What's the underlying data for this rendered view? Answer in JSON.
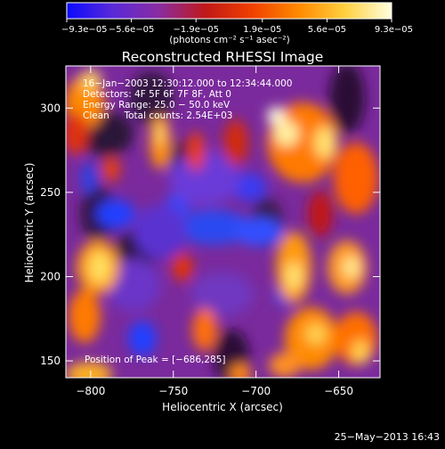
{
  "chart_data": {
    "type": "heatmap",
    "title": "Reconstructed RHESSI Image",
    "xlabel": "Heliocentric X (arcsec)",
    "ylabel": "Heliocentric Y (arcsec)",
    "xlim": [
      -815,
      -625
    ],
    "ylim": [
      140,
      325
    ],
    "x_ticks": [
      -800,
      -750,
      -700,
      -650
    ],
    "x_tick_labels": [
      "−800",
      "−750",
      "−700",
      "−650"
    ],
    "y_ticks": [
      150,
      200,
      250,
      300
    ],
    "y_tick_labels": [
      "150",
      "200",
      "250",
      "300"
    ],
    "colorbar": {
      "min": -9.3e-05,
      "max": 9.3e-05,
      "ticks": [
        -9.3e-05,
        -5.6e-05,
        -1.9e-05,
        1.9e-05,
        5.6e-05,
        9.3e-05
      ],
      "tick_labels": [
        "−9.3e−05",
        "−5.6e−05",
        "−1.9e−05",
        "1.9e−05",
        "5.6e−05",
        "9.3e−05"
      ],
      "unit_label": "(photons cm⁻² s⁻¹ asec⁻²)",
      "colors": [
        "#0a0aff",
        "#5a2ad8",
        "#8a2ca0",
        "#c01818",
        "#f04000",
        "#ff8a00",
        "#ffd040",
        "#ffffe0"
      ]
    },
    "annotations": [
      "16−Jan−2003 12:30:12.000 to 12:34:44.000",
      "Detectors: 4F 5F 6F 7F 8F, Att 0",
      "Energy Range: 25.0 − 50.0 keV",
      "Clean     Total counts: 2.54E+03"
    ],
    "peak_label": "Position of Peak = [−686,285]",
    "peak": [
      -686,
      285
    ]
  },
  "timestamp": "25−May−2013 16:43"
}
